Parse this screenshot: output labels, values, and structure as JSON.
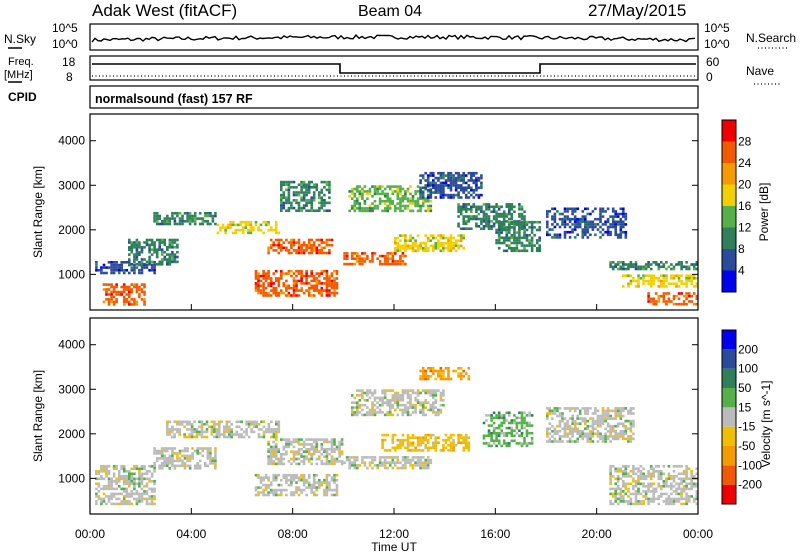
{
  "header": {
    "station": "Adak West (fitACF)",
    "beam": "Beam 04",
    "date": "27/May/2015"
  },
  "noise_panel": {
    "left_label": "N.Sky",
    "left_ticks": [
      "10^5",
      "10^0"
    ],
    "right_ticks": [
      "10^5",
      "10^0"
    ],
    "right_label": "N.Search"
  },
  "freq_panel": {
    "left_label_1": "Freq.",
    "left_label_2": "[MHz]",
    "left_ticks": [
      "18",
      "8"
    ],
    "right_ticks": [
      "60",
      "0"
    ],
    "right_label": "Nave"
  },
  "cpid": {
    "label": "CPID",
    "program": "normalsound (fast) 157 RF"
  },
  "colors": {
    "power": [
      "#0000ee",
      "#2a4a9a",
      "#2f7f5a",
      "#56b04a",
      "#f2d000",
      "#f59a00",
      "#f25a00",
      "#ee0000"
    ],
    "velocity": [
      "#ee0000",
      "#f25a00",
      "#f59a00",
      "#f0c000",
      "#bbbbbb",
      "#56b04a",
      "#2f7f5a",
      "#2a4a9a",
      "#0000ee"
    ]
  },
  "chart_data": [
    {
      "type": "heatmap",
      "name": "power",
      "ylabel": "Slant Range [km]",
      "y_ticks": [
        "1000",
        "2000",
        "3000",
        "4000"
      ],
      "ylim": [
        200,
        4600
      ],
      "colorbar_label": "Power [dB]",
      "colorbar_ticks": [
        "4",
        "8",
        "12",
        "16",
        "20",
        "24",
        "28"
      ],
      "bands": [
        {
          "t": [
            0.2,
            2.6
          ],
          "r": [
            1000,
            1300
          ],
          "lvl": 1
        },
        {
          "t": [
            0.5,
            2.2
          ],
          "r": [
            300,
            800
          ],
          "lvl": 6
        },
        {
          "t": [
            1.5,
            3.5
          ],
          "r": [
            1200,
            1800
          ],
          "lvl": 2
        },
        {
          "t": [
            2.5,
            5.0
          ],
          "r": [
            2100,
            2400
          ],
          "lvl": 2
        },
        {
          "t": [
            5.0,
            7.5
          ],
          "r": [
            1900,
            2200
          ],
          "lvl": 4
        },
        {
          "t": [
            7.0,
            9.6
          ],
          "r": [
            1450,
            1800
          ],
          "lvl": 6
        },
        {
          "t": [
            6.5,
            9.8
          ],
          "r": [
            500,
            1100
          ],
          "lvl": 6
        },
        {
          "t": [
            7.5,
            9.5
          ],
          "r": [
            2400,
            3100
          ],
          "lvl": 2
        },
        {
          "t": [
            10.0,
            12.5
          ],
          "r": [
            1200,
            1500
          ],
          "lvl": 6
        },
        {
          "t": [
            10.2,
            13.5
          ],
          "r": [
            2400,
            3000
          ],
          "lvl": 3
        },
        {
          "t": [
            12.0,
            14.8
          ],
          "r": [
            1500,
            1900
          ],
          "lvl": 4
        },
        {
          "t": [
            13.0,
            15.5
          ],
          "r": [
            2700,
            3300
          ],
          "lvl": 1
        },
        {
          "t": [
            14.5,
            17.2
          ],
          "r": [
            2000,
            2600
          ],
          "lvl": 2
        },
        {
          "t": [
            16.0,
            17.8
          ],
          "r": [
            1500,
            2200
          ],
          "lvl": 2
        },
        {
          "t": [
            18.0,
            21.2
          ],
          "r": [
            1800,
            2500
          ],
          "lvl": 1
        },
        {
          "t": [
            20.5,
            24.0
          ],
          "r": [
            1100,
            1300
          ],
          "lvl": 2
        },
        {
          "t": [
            21.0,
            24.0
          ],
          "r": [
            700,
            1000
          ],
          "lvl": 4
        },
        {
          "t": [
            22.0,
            24.0
          ],
          "r": [
            300,
            600
          ],
          "lvl": 6
        }
      ]
    },
    {
      "type": "heatmap",
      "name": "velocity",
      "ylabel": "Slant Range [km]",
      "xlabel": "Time UT",
      "x_ticks": [
        "00:00",
        "04:00",
        "08:00",
        "12:00",
        "16:00",
        "20:00",
        "00:00"
      ],
      "y_ticks": [
        "1000",
        "2000",
        "3000",
        "4000"
      ],
      "ylim": [
        200,
        4600
      ],
      "colorbar_label": "Velocity [m s^-1]",
      "colorbar_ticks": [
        "200",
        "100",
        "50",
        "15",
        "-15",
        "-50",
        "-100",
        "-200"
      ],
      "bands": [
        {
          "t": [
            0.2,
            2.6
          ],
          "r": [
            400,
            1300
          ],
          "lvl": 4
        },
        {
          "t": [
            2.5,
            5.0
          ],
          "r": [
            1200,
            1700
          ],
          "lvl": 4
        },
        {
          "t": [
            3.0,
            7.5
          ],
          "r": [
            1900,
            2300
          ],
          "lvl": 4
        },
        {
          "t": [
            7.0,
            10.0
          ],
          "r": [
            1300,
            1900
          ],
          "lvl": 4
        },
        {
          "t": [
            6.5,
            9.8
          ],
          "r": [
            600,
            1100
          ],
          "lvl": 4
        },
        {
          "t": [
            10.0,
            13.5
          ],
          "r": [
            1200,
            1500
          ],
          "lvl": 4
        },
        {
          "t": [
            10.3,
            14.0
          ],
          "r": [
            2400,
            3000
          ],
          "lvl": 4
        },
        {
          "t": [
            11.5,
            15.0
          ],
          "r": [
            1600,
            2000
          ],
          "lvl": 3
        },
        {
          "t": [
            15.5,
            17.5
          ],
          "r": [
            1700,
            2500
          ],
          "lvl": 5
        },
        {
          "t": [
            18.0,
            21.5
          ],
          "r": [
            1800,
            2600
          ],
          "lvl": 4
        },
        {
          "t": [
            20.5,
            24.0
          ],
          "r": [
            400,
            1300
          ],
          "lvl": 4
        },
        {
          "t": [
            13.0,
            15.0
          ],
          "r": [
            3200,
            3500
          ],
          "lvl": 2
        }
      ]
    }
  ]
}
